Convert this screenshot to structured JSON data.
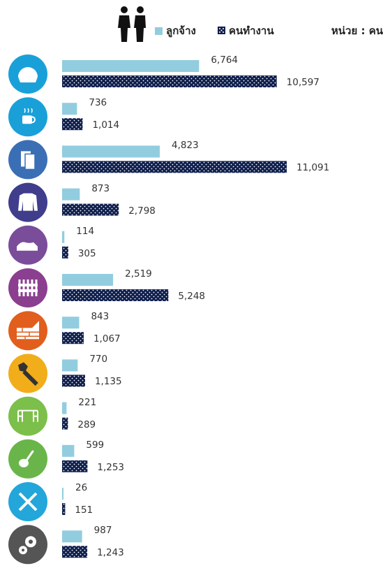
{
  "chart_data": {
    "type": "bar",
    "orientation": "horizontal",
    "unit_label": "หน่วย : คน",
    "categories": [
      "food-icon",
      "beverage-icon",
      "textile-icon",
      "apparel-icon",
      "footwear-icon",
      "wood-icon",
      "nonmetal-brick-icon",
      "metal-bolt-icon",
      "furniture-icon",
      "guitar-icon",
      "repair-tools-icon",
      "machinery-gear-icon"
    ],
    "icon_colors": [
      "#1aa0d8",
      "#1aa0d8",
      "#3b6fb5",
      "#3f3d8c",
      "#7a4d9a",
      "#8b3f8f",
      "#e25e1c",
      "#f2ad1a",
      "#7cbf4a",
      "#6ab54a",
      "#23a6d9",
      "#555555"
    ],
    "series": [
      {
        "name": "ลูกจ้าง",
        "color": "#92cddf",
        "values": [
          6764,
          736,
          4823,
          873,
          114,
          2519,
          843,
          770,
          221,
          599,
          26,
          987
        ]
      },
      {
        "name": "คนทำงาน",
        "color": "#0f1f4d",
        "values": [
          10597,
          1014,
          11091,
          2798,
          305,
          5248,
          1067,
          1135,
          289,
          1253,
          151,
          1243
        ]
      }
    ],
    "xlim": [
      0,
      11500
    ],
    "grid": false,
    "legend_position": "top-center"
  }
}
